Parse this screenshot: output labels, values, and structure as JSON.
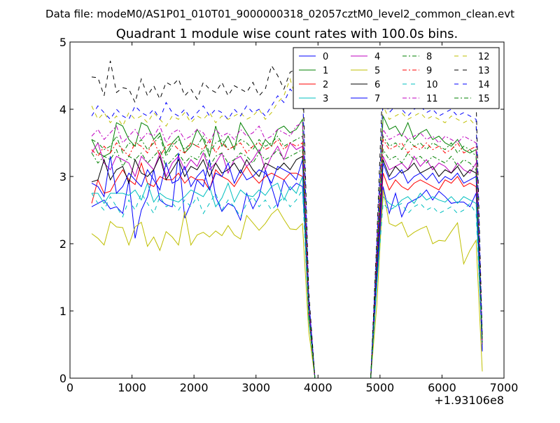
{
  "suptitle": "Data file: modeM0/AS1P01_010T01_9000000318_02057cztM0_level2_common_clean.evt",
  "chart_data": {
    "type": "line",
    "title": "Quadrant 1 module wise count rates with 100.0s bins.",
    "xlabel": "",
    "ylabel": "",
    "x_offset_label": "+1.93106e8",
    "xlim": [
      0,
      7000
    ],
    "ylim": [
      0,
      5
    ],
    "xticks": [
      0,
      1000,
      2000,
      3000,
      4000,
      5000,
      6000,
      7000
    ],
    "yticks": [
      0,
      1,
      2,
      3,
      4,
      5
    ],
    "grid": false,
    "legend_position": "top-right",
    "x": [
      350,
      450,
      550,
      650,
      750,
      850,
      950,
      1050,
      1150,
      1250,
      1350,
      1450,
      1550,
      1650,
      1750,
      1850,
      1950,
      2050,
      2150,
      2250,
      2350,
      2450,
      2550,
      2650,
      2750,
      2850,
      2950,
      3050,
      3150,
      3250,
      3350,
      3450,
      3550,
      3650,
      3750,
      3850,
      3950,
      4050,
      4150,
      4250,
      4350,
      4450,
      4550,
      4650,
      4750,
      4850,
      4950,
      5050,
      5150,
      5250,
      5350,
      5450,
      5550,
      5650,
      5750,
      5850,
      5950,
      6050,
      6150,
      6250,
      6350,
      6450,
      6550,
      6650
    ],
    "series": [
      {
        "name": "0",
        "color": "#0000ff",
        "dash": "solid",
        "values": [
          2.55,
          2.6,
          2.65,
          2.52,
          2.55,
          2.45,
          2.95,
          2.08,
          2.5,
          2.7,
          3.1,
          2.65,
          2.58,
          2.55,
          3.35,
          2.38,
          2.6,
          2.95,
          2.85,
          3.25,
          2.7,
          2.48,
          2.6,
          2.55,
          2.35,
          2.75,
          2.52,
          2.7,
          3.1,
          2.85,
          2.55,
          2.95,
          2.8,
          2.9,
          2.85,
          1.2,
          0,
          0,
          0,
          0,
          0,
          0,
          0,
          0,
          0,
          0,
          1.5,
          2.85,
          2.45,
          2.75,
          2.4,
          2.6,
          2.65,
          2.7,
          2.8,
          2.65,
          2.78,
          2.7,
          2.6,
          2.62,
          2.62,
          2.55,
          2.75,
          0.4
        ]
      },
      {
        "name": "1",
        "color": "#008000",
        "dash": "solid",
        "values": [
          3.55,
          3.35,
          3.3,
          3.35,
          3.8,
          3.75,
          3.55,
          3.45,
          3.8,
          3.75,
          3.55,
          3.65,
          3.35,
          3.5,
          3.6,
          3.35,
          3.45,
          3.7,
          3.55,
          3.3,
          3.75,
          3.45,
          3.6,
          3.4,
          3.8,
          3.65,
          3.5,
          3.35,
          3.55,
          3.45,
          3.7,
          3.75,
          3.65,
          3.7,
          3.85,
          1.0,
          0,
          0,
          0,
          0,
          0,
          0,
          0,
          0,
          0,
          0,
          1.8,
          3.9,
          3.7,
          3.75,
          3.6,
          3.8,
          3.55,
          3.65,
          3.7,
          3.55,
          3.6,
          3.5,
          3.45,
          3.55,
          3.4,
          3.35,
          3.4,
          0.5
        ]
      },
      {
        "name": "2",
        "color": "#ff0000",
        "dash": "solid",
        "values": [
          2.6,
          2.95,
          2.75,
          2.78,
          2.95,
          3.1,
          2.95,
          2.88,
          3.2,
          2.9,
          2.85,
          3.0,
          2.95,
          2.95,
          3.05,
          2.9,
          3.0,
          2.95,
          2.95,
          2.8,
          3.1,
          3.0,
          2.95,
          2.85,
          3.0,
          3.15,
          3.0,
          2.9,
          3.0,
          3.05,
          3.0,
          2.95,
          3.05,
          3.05,
          3.0,
          0.9,
          0,
          0,
          0,
          0,
          0,
          0,
          0,
          0,
          0,
          0,
          1.5,
          3.05,
          2.8,
          2.95,
          2.85,
          2.8,
          2.9,
          2.95,
          2.9,
          2.85,
          2.8,
          2.95,
          2.9,
          3.0,
          2.85,
          2.9,
          2.85,
          0.5
        ]
      },
      {
        "name": "3",
        "color": "#00bfbf",
        "dash": "solid",
        "values": [
          2.75,
          2.75,
          2.6,
          2.75,
          2.75,
          2.75,
          2.72,
          2.8,
          2.65,
          2.9,
          2.62,
          2.75,
          2.68,
          2.65,
          2.62,
          2.7,
          2.8,
          2.75,
          2.7,
          2.85,
          2.55,
          2.68,
          2.9,
          2.62,
          2.8,
          2.72,
          2.7,
          2.8,
          2.72,
          2.85,
          2.9,
          2.65,
          2.85,
          2.75,
          3.0,
          0.9,
          0,
          0,
          0,
          0,
          0,
          0,
          0,
          0,
          0,
          0,
          1.4,
          2.7,
          2.6,
          2.55,
          2.65,
          2.7,
          2.6,
          2.75,
          2.65,
          2.7,
          2.65,
          2.62,
          2.7,
          2.6,
          2.7,
          2.65,
          2.6,
          0.5
        ]
      },
      {
        "name": "4",
        "color": "#bf00bf",
        "dash": "solid",
        "values": [
          3.35,
          3.5,
          3.2,
          3.1,
          3.3,
          3.25,
          3.2,
          3.0,
          3.3,
          3.2,
          3.1,
          3.35,
          3.0,
          3.2,
          3.3,
          3.1,
          3.25,
          3.15,
          3.35,
          3.1,
          3.2,
          3.35,
          3.05,
          3.25,
          3.3,
          3.15,
          3.25,
          3.4,
          3.1,
          3.3,
          3.45,
          3.25,
          3.5,
          3.4,
          3.45,
          1.0,
          0,
          0,
          0,
          0,
          0,
          0,
          0,
          0,
          0,
          0,
          1.7,
          3.3,
          3.1,
          3.15,
          3.2,
          3.1,
          3.3,
          3.15,
          3.25,
          3.1,
          3.2,
          3.15,
          3.05,
          3.2,
          3.1,
          3.05,
          3.2,
          0.5
        ]
      },
      {
        "name": "5",
        "color": "#bfbf00",
        "dash": "solid",
        "values": [
          2.15,
          2.08,
          1.98,
          2.33,
          2.25,
          2.24,
          1.98,
          2.25,
          2.32,
          1.96,
          2.1,
          1.9,
          2.18,
          2.1,
          1.98,
          2.48,
          1.98,
          2.13,
          2.17,
          2.1,
          2.19,
          2.12,
          2.27,
          2.13,
          2.07,
          2.42,
          2.31,
          2.2,
          2.3,
          2.44,
          2.52,
          2.36,
          2.22,
          2.21,
          2.3,
          0.7,
          0,
          0,
          0,
          0,
          0,
          0,
          0,
          0,
          0,
          0,
          1.1,
          2.8,
          2.3,
          2.26,
          2.32,
          2.1,
          2.17,
          2.22,
          2.26,
          2.0,
          2.05,
          2.04,
          2.18,
          2.31,
          1.7,
          1.9,
          2.05,
          0.1
        ]
      },
      {
        "name": "6",
        "color": "#000000",
        "dash": "solid",
        "values": [
          2.92,
          2.95,
          3.25,
          2.95,
          3.1,
          3.15,
          2.9,
          3.25,
          3.05,
          3.0,
          3.1,
          3.3,
          2.95,
          3.1,
          3.25,
          3.0,
          3.15,
          3.1,
          3.25,
          3.0,
          3.2,
          3.05,
          3.1,
          3.2,
          3.05,
          3.25,
          3.1,
          3.0,
          3.2,
          3.15,
          3.1,
          3.2,
          3.1,
          3.25,
          3.3,
          1.0,
          0,
          0,
          0,
          0,
          0,
          0,
          0,
          0,
          0,
          0,
          1.6,
          3.25,
          3.0,
          3.15,
          3.05,
          3.1,
          3.2,
          3.05,
          3.1,
          3.15,
          3.0,
          3.1,
          3.05,
          3.15,
          3.0,
          3.1,
          3.05,
          0.5
        ]
      },
      {
        "name": "7",
        "color": "#0000ff",
        "dash": "solid",
        "values": [
          2.9,
          2.85,
          2.7,
          3.3,
          2.75,
          2.85,
          3.05,
          2.95,
          2.85,
          3.1,
          2.95,
          2.8,
          3.2,
          2.9,
          2.95,
          3.15,
          2.85,
          3.0,
          3.1,
          2.8,
          3.05,
          3.0,
          3.2,
          2.9,
          3.1,
          2.95,
          3.0,
          3.1,
          3.05,
          2.9,
          3.15,
          3.1,
          3.05,
          2.95,
          3.25,
          1.0,
          0,
          0,
          0,
          0,
          0,
          0,
          0,
          0,
          0,
          0,
          1.5,
          3.2,
          2.95,
          3.0,
          3.1,
          2.9,
          3.0,
          3.05,
          2.95,
          3.05,
          2.9,
          3.0,
          2.95,
          3.05,
          2.9,
          2.95,
          3.0,
          0.4
        ]
      },
      {
        "name": "8",
        "color": "#008000",
        "dash": "dashdot",
        "values": [
          3.55,
          3.5,
          3.4,
          3.45,
          3.6,
          3.35,
          3.5,
          3.45,
          3.55,
          3.4,
          3.5,
          3.6,
          3.3,
          3.45,
          3.55,
          3.4,
          3.5,
          3.45,
          3.6,
          3.35,
          3.5,
          3.55,
          3.4,
          3.45,
          3.55,
          3.5,
          3.4,
          3.55,
          3.45,
          3.5,
          3.6,
          3.45,
          3.5,
          3.55,
          3.6,
          1.0,
          0,
          0,
          0,
          0,
          0,
          0,
          0,
          0,
          0,
          0,
          1.8,
          3.6,
          3.45,
          3.5,
          3.4,
          3.55,
          3.45,
          3.5,
          3.4,
          3.5,
          3.45,
          3.4,
          3.5,
          3.35,
          3.45,
          3.4,
          3.3,
          0.5
        ]
      },
      {
        "name": "9",
        "color": "#ff0000",
        "dash": "dashdot",
        "values": [
          3.4,
          3.3,
          3.45,
          3.35,
          3.5,
          3.4,
          3.3,
          3.5,
          3.45,
          3.35,
          3.55,
          3.3,
          3.45,
          3.5,
          3.4,
          3.35,
          3.5,
          3.45,
          3.4,
          3.55,
          3.35,
          3.5,
          3.4,
          3.45,
          3.5,
          3.35,
          3.45,
          3.5,
          3.4,
          3.45,
          3.55,
          3.4,
          3.5,
          3.45,
          3.5,
          1.0,
          0,
          0,
          0,
          0,
          0,
          0,
          0,
          0,
          0,
          0,
          1.7,
          3.55,
          3.4,
          3.45,
          3.5,
          3.35,
          3.45,
          3.4,
          3.5,
          3.4,
          3.45,
          3.35,
          3.4,
          3.5,
          3.35,
          3.4,
          3.45,
          0.5
        ]
      },
      {
        "name": "10",
        "color": "#00bfbf",
        "dash": "dashed",
        "values": [
          2.75,
          2.6,
          2.5,
          2.7,
          2.55,
          2.4,
          2.65,
          2.5,
          2.75,
          2.6,
          2.45,
          2.7,
          2.55,
          2.6,
          2.5,
          2.65,
          2.55,
          2.7,
          2.45,
          2.6,
          2.75,
          2.5,
          2.65,
          2.55,
          2.4,
          2.6,
          2.7,
          2.55,
          2.65,
          2.5,
          2.6,
          2.7,
          2.55,
          2.65,
          2.8,
          0.9,
          0,
          0,
          0,
          0,
          0,
          0,
          0,
          0,
          0,
          0,
          1.4,
          2.6,
          2.5,
          2.55,
          2.6,
          2.45,
          2.55,
          2.6,
          2.5,
          2.55,
          2.45,
          2.5,
          2.55,
          2.45,
          2.5,
          2.6,
          2.45,
          0.5
        ]
      },
      {
        "name": "11",
        "color": "#bf00bf",
        "dash": "dashdot",
        "values": [
          3.6,
          3.7,
          3.55,
          3.65,
          3.75,
          3.5,
          3.6,
          3.7,
          3.55,
          3.65,
          3.6,
          3.75,
          3.5,
          3.65,
          3.7,
          3.55,
          3.6,
          3.7,
          3.65,
          3.5,
          3.7,
          3.6,
          3.65,
          3.55,
          3.7,
          3.6,
          3.65,
          3.75,
          3.55,
          3.6,
          3.7,
          3.65,
          3.6,
          3.75,
          3.8,
          1.1,
          0,
          0,
          0,
          0,
          0,
          0,
          0,
          0,
          0,
          0,
          1.9,
          3.7,
          3.55,
          3.6,
          3.65,
          3.55,
          3.6,
          3.65,
          3.55,
          3.6,
          3.5,
          3.6,
          3.55,
          3.5,
          3.6,
          3.55,
          3.5,
          0.5
        ]
      },
      {
        "name": "12",
        "color": "#bfbf00",
        "dash": "dashed",
        "values": [
          4.05,
          3.85,
          3.95,
          3.8,
          3.9,
          3.75,
          3.95,
          3.85,
          3.9,
          3.8,
          3.95,
          3.85,
          3.75,
          3.9,
          3.85,
          3.95,
          3.8,
          3.9,
          3.85,
          3.95,
          3.8,
          3.9,
          3.85,
          3.9,
          3.95,
          3.85,
          3.9,
          4.0,
          3.85,
          3.95,
          4.1,
          4.2,
          4.45,
          4.15,
          4.3,
          1.2,
          0,
          0,
          0,
          0,
          0,
          0,
          0,
          0,
          0,
          0,
          2.0,
          4.05,
          3.85,
          3.9,
          3.95,
          3.85,
          3.9,
          3.95,
          3.85,
          3.9,
          3.85,
          3.8,
          3.9,
          3.85,
          3.8,
          3.85,
          3.75,
          0.6
        ]
      },
      {
        "name": "13",
        "color": "#000000",
        "dash": "dashed",
        "values": [
          4.48,
          4.47,
          4.2,
          4.72,
          4.25,
          4.32,
          4.3,
          4.1,
          4.45,
          4.2,
          4.35,
          4.15,
          4.4,
          4.35,
          4.45,
          4.2,
          4.3,
          4.15,
          4.4,
          4.3,
          4.25,
          4.4,
          4.2,
          4.35,
          4.3,
          4.25,
          4.4,
          4.2,
          4.3,
          4.65,
          4.5,
          4.3,
          4.55,
          4.6,
          4.65,
          1.3,
          0,
          0,
          0,
          0,
          0,
          0,
          0,
          0,
          0,
          0,
          2.1,
          4.55,
          4.3,
          4.4,
          4.35,
          4.25,
          4.4,
          4.3,
          4.35,
          4.25,
          4.3,
          4.35,
          4.2,
          4.3,
          4.25,
          4.2,
          4.15,
          0.6
        ]
      },
      {
        "name": "14",
        "color": "#0000ff",
        "dash": "dashed",
        "values": [
          3.9,
          4.05,
          3.95,
          3.85,
          4.0,
          3.9,
          3.85,
          4.05,
          3.95,
          3.9,
          4.0,
          3.85,
          4.1,
          3.95,
          3.9,
          4.0,
          3.85,
          3.95,
          4.05,
          3.9,
          4.0,
          3.95,
          3.85,
          4.0,
          3.9,
          4.05,
          3.95,
          4.0,
          3.9,
          4.05,
          4.2,
          4.1,
          4.3,
          4.2,
          4.35,
          1.2,
          0,
          0,
          0,
          0,
          0,
          0,
          0,
          0,
          0,
          0,
          2.0,
          4.2,
          3.95,
          4.05,
          4.0,
          3.9,
          4.0,
          4.05,
          3.95,
          4.0,
          3.9,
          3.95,
          4.0,
          3.9,
          3.95,
          3.9,
          3.85,
          0.6
        ]
      },
      {
        "name": "15",
        "color": "#008000",
        "dash": "dashdot",
        "values": [
          3.35,
          3.2,
          3.3,
          3.25,
          3.4,
          3.15,
          3.3,
          3.25,
          3.35,
          3.2,
          3.3,
          3.4,
          3.15,
          3.25,
          3.35,
          3.2,
          3.3,
          3.25,
          3.4,
          3.15,
          3.3,
          3.35,
          3.2,
          3.25,
          3.35,
          3.3,
          3.2,
          3.35,
          3.25,
          3.3,
          3.4,
          3.25,
          3.3,
          3.35,
          3.4,
          1.0,
          0,
          0,
          0,
          0,
          0,
          0,
          0,
          0,
          0,
          0,
          1.7,
          3.4,
          3.25,
          3.3,
          3.2,
          3.35,
          3.25,
          3.3,
          3.2,
          3.3,
          3.25,
          3.2,
          3.3,
          3.15,
          3.25,
          3.2,
          3.1,
          0.5
        ]
      }
    ]
  }
}
